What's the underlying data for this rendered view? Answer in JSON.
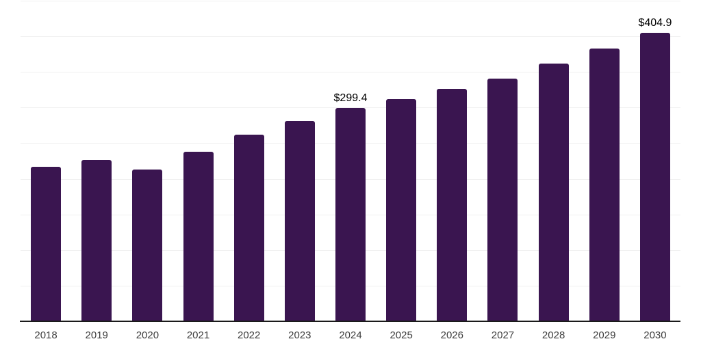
{
  "chart": {
    "background_color": "#ffffff",
    "bar_color": "#3A1550",
    "gridline_color": "#F0F0F0",
    "axis_color": "#1A1A1A",
    "tick_label_color": "#3D3D3D",
    "data_label_color": "#000000"
  },
  "chart_data": {
    "type": "bar",
    "categories": [
      "2018",
      "2019",
      "2020",
      "2021",
      "2022",
      "2023",
      "2024",
      "2025",
      "2026",
      "2027",
      "2028",
      "2029",
      "2030"
    ],
    "values": [
      216.8,
      226.4,
      213.5,
      238.0,
      261.9,
      281.1,
      299.4,
      311.8,
      326.2,
      340.6,
      361.7,
      382.8,
      404.9
    ],
    "annotations": [
      {
        "category": "2024",
        "text": "$299.4"
      },
      {
        "category": "2030",
        "text": "$404.9"
      }
    ],
    "title": "",
    "xlabel": "",
    "ylabel": "",
    "ylim": [
      0,
      450
    ],
    "grid_step": 50,
    "grid": "horizontal-only",
    "legend_position": "none",
    "y_axis_labels_visible": false
  }
}
